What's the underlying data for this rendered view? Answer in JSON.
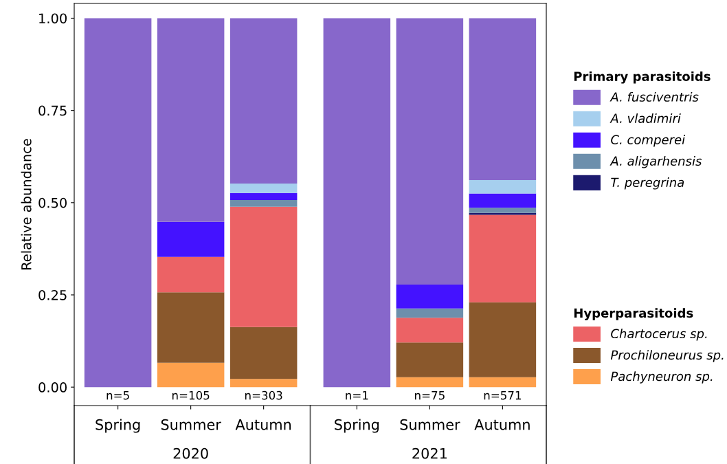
{
  "chart_data": {
    "type": "bar",
    "stacked": true,
    "ylabel": "Relative abundance",
    "categories": [
      "Spring",
      "Summer",
      "Autumn",
      "Spring",
      "Summer",
      "Autumn"
    ],
    "series": [
      {
        "name": "Pachyneuron sp.",
        "color": "#fea04c",
        "values": [
          0,
          0.066,
          0.022,
          0,
          0.027,
          0.027
        ]
      },
      {
        "name": "Prochiloneurus sp.",
        "color": "#8a582c",
        "values": [
          0,
          0.191,
          0.141,
          0,
          0.094,
          0.203
        ]
      },
      {
        "name": "Chartocerus sp.",
        "color": "#ec6265",
        "values": [
          0,
          0.096,
          0.326,
          0,
          0.067,
          0.237
        ]
      },
      {
        "name": "T. peregrina",
        "color": "#1c1a6e",
        "values": [
          0,
          0,
          0,
          0,
          0,
          0.005
        ]
      },
      {
        "name": "A. aligarhensis",
        "color": "#6d8fac",
        "values": [
          0,
          0,
          0.018,
          0,
          0.025,
          0.014
        ]
      },
      {
        "name": "C. comperei",
        "color": "#4412ff",
        "values": [
          0,
          0.095,
          0.019,
          0,
          0.065,
          0.039
        ]
      },
      {
        "name": "A. vladimiri",
        "color": "#a6cfee",
        "values": [
          0,
          0,
          0.026,
          0,
          0,
          0.036
        ]
      },
      {
        "name": "A. fusciventris",
        "color": "#8767cb",
        "values": [
          1,
          0.552,
          0.448,
          1,
          0.722,
          0.439
        ]
      }
    ],
    "ylim": [
      -0.05,
      1.04
    ],
    "yticks": [
      {
        "value": 0,
        "label": "0.00"
      },
      {
        "value": 0.25,
        "label": "0.25"
      },
      {
        "value": 0.5,
        "label": "0.50"
      },
      {
        "value": 0.75,
        "label": "0.75"
      },
      {
        "value": 1,
        "label": "1.00"
      }
    ],
    "grid": false,
    "legend": "right",
    "annotations": [
      "n=5",
      "n=105",
      "n=303",
      "n=1",
      "n=75",
      "n=571",
      "2020",
      "2021",
      "Primary parasitoids",
      "Hyperparasitoids"
    ]
  }
}
